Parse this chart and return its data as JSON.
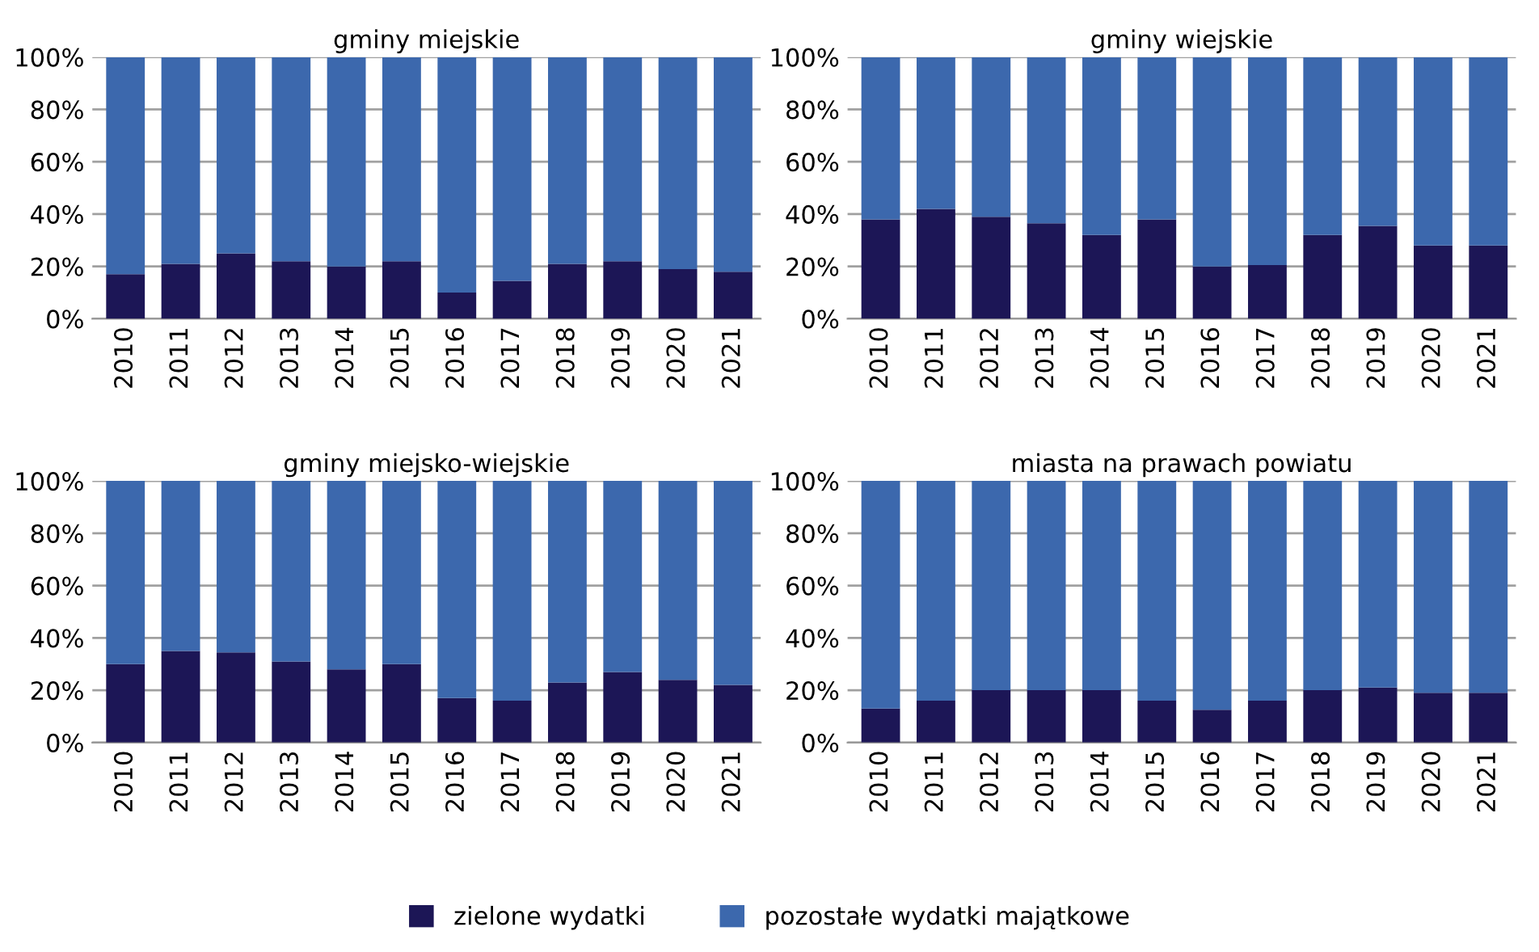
{
  "chart_data": [
    {
      "type": "bar",
      "stacked": true,
      "title": "gminy miejskie",
      "categories": [
        "2010",
        "2011",
        "2012",
        "2013",
        "2014",
        "2015",
        "2016",
        "2017",
        "2018",
        "2019",
        "2020",
        "2021"
      ],
      "series": [
        {
          "name": "zielone wydatki",
          "color": "#1c1656",
          "values": [
            17,
            21,
            25,
            22,
            20,
            22,
            10,
            14.5,
            21,
            22,
            19,
            18
          ]
        },
        {
          "name": "pozostałe wydatki majątkowe",
          "color": "#3c68ad",
          "values": [
            83,
            79,
            75,
            78,
            80,
            78,
            90,
            85.5,
            79,
            78,
            81,
            82
          ]
        }
      ],
      "ylim": [
        0,
        100
      ],
      "yticks": [
        {
          "value": 0,
          "label": "0%"
        },
        {
          "value": 20,
          "label": "20%"
        },
        {
          "value": 40,
          "label": "40%"
        },
        {
          "value": 60,
          "label": "60%"
        },
        {
          "value": 80,
          "label": "80%"
        },
        {
          "value": 100,
          "label": "100%"
        }
      ],
      "grid": "y",
      "legend": "bottom"
    },
    {
      "type": "bar",
      "stacked": true,
      "title": "gminy wiejskie",
      "categories": [
        "2010",
        "2011",
        "2012",
        "2013",
        "2014",
        "2015",
        "2016",
        "2017",
        "2018",
        "2019",
        "2020",
        "2021"
      ],
      "series": [
        {
          "color": "#1c1656",
          "values": [
            38,
            42,
            39,
            36.5,
            32,
            38,
            20,
            20.5,
            32,
            35.5,
            28,
            28
          ]
        },
        {
          "color": "#3c68ad",
          "values": [
            62,
            58,
            61,
            63.5,
            68,
            62,
            80,
            79.5,
            68,
            64.5,
            72,
            72
          ]
        }
      ],
      "ylim": [
        0,
        100
      ],
      "yticks": [
        {
          "value": 0,
          "label": "0%"
        },
        {
          "value": 20,
          "label": "20%"
        },
        {
          "value": 40,
          "label": "40%"
        },
        {
          "value": 60,
          "label": "60%"
        },
        {
          "value": 80,
          "label": "80%"
        },
        {
          "value": 100,
          "label": "100%"
        }
      ],
      "grid": "y"
    },
    {
      "type": "bar",
      "stacked": true,
      "title": "gminy miejsko-wiejskie",
      "categories": [
        "2010",
        "2011",
        "2012",
        "2013",
        "2014",
        "2015",
        "2016",
        "2017",
        "2018",
        "2019",
        "2020",
        "2021"
      ],
      "series": [
        {
          "color": "#1c1656",
          "values": [
            30,
            35,
            34.5,
            31,
            28,
            30,
            17,
            16,
            23,
            27,
            24,
            22
          ]
        },
        {
          "color": "#3c68ad",
          "values": [
            70,
            65,
            65.5,
            69,
            72,
            70,
            83,
            84,
            77,
            73,
            76,
            78
          ]
        }
      ],
      "ylim": [
        0,
        100
      ],
      "yticks": [
        {
          "value": 0,
          "label": "0%"
        },
        {
          "value": 20,
          "label": "20%"
        },
        {
          "value": 40,
          "label": "40%"
        },
        {
          "value": 60,
          "label": "60%"
        },
        {
          "value": 80,
          "label": "80%"
        },
        {
          "value": 100,
          "label": "100%"
        }
      ],
      "grid": "y"
    },
    {
      "type": "bar",
      "stacked": true,
      "title": "miasta na prawach powiatu",
      "categories": [
        "2010",
        "2011",
        "2012",
        "2013",
        "2014",
        "2015",
        "2016",
        "2017",
        "2018",
        "2019",
        "2020",
        "2021"
      ],
      "series": [
        {
          "color": "#1c1656",
          "values": [
            13,
            16,
            20,
            20,
            20,
            16,
            12.5,
            16,
            20,
            21,
            19,
            19
          ]
        },
        {
          "color": "#3c68ad",
          "values": [
            87,
            84,
            80,
            80,
            80,
            84,
            87.5,
            84,
            80,
            79,
            81,
            81
          ]
        }
      ],
      "ylim": [
        0,
        100
      ],
      "yticks": [
        {
          "value": 0,
          "label": "0%"
        },
        {
          "value": 20,
          "label": "20%"
        },
        {
          "value": 40,
          "label": "40%"
        },
        {
          "value": 60,
          "label": "60%"
        },
        {
          "value": 80,
          "label": "80%"
        },
        {
          "value": 100,
          "label": "100%"
        }
      ],
      "grid": "y"
    }
  ]
}
